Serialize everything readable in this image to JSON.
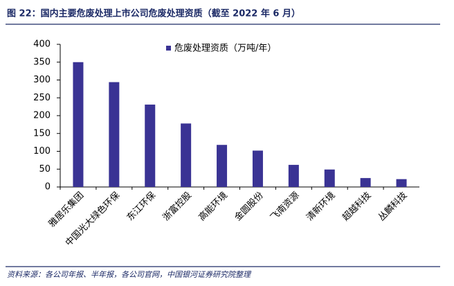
{
  "chart_data": {
    "type": "bar",
    "title": "图 22：国内主要危废处理上市公司危废处理资质（截至 2022 年 6 月）",
    "source": "资料来源：各公司年报、半年报，各公司官网，中国银河证券研究院整理",
    "categories": [
      "雅居乐集团",
      "中国光大绿色环保",
      "东江环保",
      "浙富控股",
      "高能环境",
      "金圆股份",
      "飞南资源",
      "清新环境",
      "超越科技",
      "丛麟科技"
    ],
    "series": [
      {
        "name": "危废处理资质（万吨/年）",
        "color": "#3a3394",
        "values": [
          350,
          294,
          231,
          178,
          118,
          102,
          62,
          49,
          25,
          22
        ]
      }
    ],
    "ylim": [
      0,
      400
    ],
    "yticks": [
      0,
      50,
      100,
      150,
      200,
      250,
      300,
      350,
      400
    ],
    "grid": false,
    "legend": "top"
  }
}
